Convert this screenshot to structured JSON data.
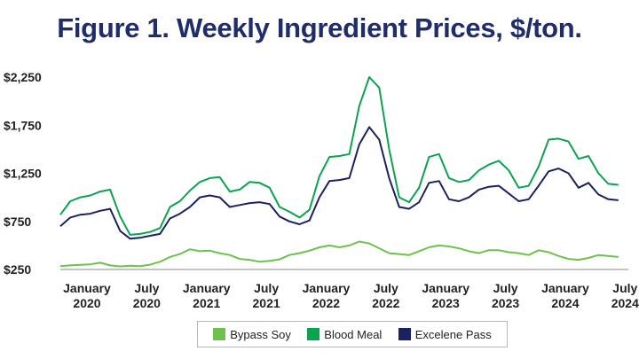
{
  "chart_data": {
    "type": "line",
    "title": "Figure 1. Weekly Ingredient Prices, $/ton.",
    "xlabel": "",
    "ylabel": "",
    "ylim": [
      250,
      2300
    ],
    "y_ticks": [
      "$250",
      "$750",
      "$1,250",
      "$1,750",
      "$2,250"
    ],
    "y_tick_values": [
      250,
      750,
      1250,
      1750,
      2250
    ],
    "x_ticks": [
      {
        "top": "January",
        "bottom": "2020",
        "month": 0
      },
      {
        "top": "July",
        "bottom": "2020",
        "month": 6
      },
      {
        "top": "January",
        "bottom": "2021",
        "month": 12
      },
      {
        "top": "July",
        "bottom": "2021",
        "month": 18
      },
      {
        "top": "January",
        "bottom": "2022",
        "month": 24
      },
      {
        "top": "July",
        "bottom": "2022",
        "month": 30
      },
      {
        "top": "January",
        "bottom": "2023",
        "month": 36
      },
      {
        "top": "July",
        "bottom": "2023",
        "month": 42
      },
      {
        "top": "January",
        "bottom": "2024",
        "month": 48
      },
      {
        "top": "July",
        "bottom": "2024",
        "month": 54
      }
    ],
    "x_range": [
      0,
      57
    ],
    "grid": false,
    "legend_position": "bottom-center",
    "series": [
      {
        "name": "Bypass Soy",
        "color": "#6cc24a",
        "points": [
          [
            0,
            285
          ],
          [
            1,
            292
          ],
          [
            2,
            298
          ],
          [
            3,
            303
          ],
          [
            4,
            320
          ],
          [
            5,
            292
          ],
          [
            6,
            282
          ],
          [
            7,
            290
          ],
          [
            8,
            285
          ],
          [
            9,
            300
          ],
          [
            10,
            330
          ],
          [
            11,
            380
          ],
          [
            12,
            410
          ],
          [
            13,
            460
          ],
          [
            14,
            440
          ],
          [
            15,
            445
          ],
          [
            16,
            420
          ],
          [
            17,
            400
          ],
          [
            18,
            360
          ],
          [
            19,
            350
          ],
          [
            20,
            330
          ],
          [
            21,
            340
          ],
          [
            22,
            355
          ],
          [
            23,
            400
          ],
          [
            24,
            420
          ],
          [
            25,
            445
          ],
          [
            26,
            480
          ],
          [
            27,
            500
          ],
          [
            28,
            480
          ],
          [
            29,
            500
          ],
          [
            30,
            540
          ],
          [
            31,
            520
          ],
          [
            32,
            470
          ],
          [
            33,
            420
          ],
          [
            34,
            410
          ],
          [
            35,
            400
          ],
          [
            36,
            440
          ],
          [
            37,
            480
          ],
          [
            38,
            500
          ],
          [
            39,
            490
          ],
          [
            40,
            470
          ],
          [
            41,
            440
          ],
          [
            42,
            420
          ],
          [
            43,
            450
          ],
          [
            44,
            450
          ],
          [
            45,
            430
          ],
          [
            46,
            420
          ],
          [
            47,
            400
          ],
          [
            48,
            450
          ],
          [
            49,
            430
          ],
          [
            50,
            390
          ],
          [
            51,
            360
          ],
          [
            52,
            350
          ],
          [
            53,
            370
          ],
          [
            54,
            400
          ],
          [
            55,
            390
          ],
          [
            56,
            380
          ]
        ]
      },
      {
        "name": "Blood Meal",
        "color": "#0aa34f",
        "points": [
          [
            0,
            820
          ],
          [
            1,
            960
          ],
          [
            2,
            1000
          ],
          [
            3,
            1020
          ],
          [
            4,
            1060
          ],
          [
            5,
            1080
          ],
          [
            6,
            800
          ],
          [
            7,
            610
          ],
          [
            8,
            620
          ],
          [
            9,
            640
          ],
          [
            10,
            680
          ],
          [
            11,
            900
          ],
          [
            12,
            960
          ],
          [
            13,
            1070
          ],
          [
            14,
            1160
          ],
          [
            15,
            1200
          ],
          [
            16,
            1210
          ],
          [
            17,
            1060
          ],
          [
            18,
            1080
          ],
          [
            19,
            1160
          ],
          [
            20,
            1150
          ],
          [
            21,
            1100
          ],
          [
            22,
            900
          ],
          [
            23,
            850
          ],
          [
            24,
            790
          ],
          [
            25,
            870
          ],
          [
            26,
            1220
          ],
          [
            27,
            1420
          ],
          [
            28,
            1430
          ],
          [
            29,
            1450
          ],
          [
            30,
            1950
          ],
          [
            31,
            2250
          ],
          [
            32,
            2140
          ],
          [
            33,
            1500
          ],
          [
            34,
            1000
          ],
          [
            35,
            950
          ],
          [
            36,
            1100
          ],
          [
            37,
            1420
          ],
          [
            38,
            1450
          ],
          [
            39,
            1200
          ],
          [
            40,
            1160
          ],
          [
            41,
            1180
          ],
          [
            42,
            1280
          ],
          [
            43,
            1340
          ],
          [
            44,
            1380
          ],
          [
            45,
            1280
          ],
          [
            46,
            1100
          ],
          [
            47,
            1120
          ],
          [
            48,
            1320
          ],
          [
            49,
            1600
          ],
          [
            50,
            1610
          ],
          [
            51,
            1580
          ],
          [
            52,
            1400
          ],
          [
            53,
            1430
          ],
          [
            54,
            1250
          ],
          [
            55,
            1140
          ],
          [
            56,
            1130
          ]
        ]
      },
      {
        "name": "Excelene Pass",
        "color": "#1a2260",
        "points": [
          [
            0,
            700
          ],
          [
            1,
            790
          ],
          [
            2,
            820
          ],
          [
            3,
            830
          ],
          [
            4,
            860
          ],
          [
            5,
            880
          ],
          [
            6,
            650
          ],
          [
            7,
            570
          ],
          [
            8,
            580
          ],
          [
            9,
            600
          ],
          [
            10,
            620
          ],
          [
            11,
            780
          ],
          [
            12,
            830
          ],
          [
            13,
            900
          ],
          [
            14,
            1000
          ],
          [
            15,
            1020
          ],
          [
            16,
            1000
          ],
          [
            17,
            900
          ],
          [
            18,
            920
          ],
          [
            19,
            940
          ],
          [
            20,
            950
          ],
          [
            21,
            930
          ],
          [
            22,
            800
          ],
          [
            23,
            750
          ],
          [
            24,
            720
          ],
          [
            25,
            760
          ],
          [
            26,
            1000
          ],
          [
            27,
            1170
          ],
          [
            28,
            1180
          ],
          [
            29,
            1200
          ],
          [
            30,
            1550
          ],
          [
            31,
            1730
          ],
          [
            32,
            1600
          ],
          [
            33,
            1200
          ],
          [
            34,
            900
          ],
          [
            35,
            880
          ],
          [
            36,
            950
          ],
          [
            37,
            1150
          ],
          [
            38,
            1170
          ],
          [
            39,
            980
          ],
          [
            40,
            960
          ],
          [
            41,
            1000
          ],
          [
            42,
            1080
          ],
          [
            43,
            1110
          ],
          [
            44,
            1120
          ],
          [
            45,
            1040
          ],
          [
            46,
            960
          ],
          [
            47,
            980
          ],
          [
            48,
            1120
          ],
          [
            49,
            1270
          ],
          [
            50,
            1300
          ],
          [
            51,
            1250
          ],
          [
            52,
            1100
          ],
          [
            53,
            1150
          ],
          [
            54,
            1030
          ],
          [
            55,
            980
          ],
          [
            56,
            970
          ]
        ]
      }
    ]
  }
}
